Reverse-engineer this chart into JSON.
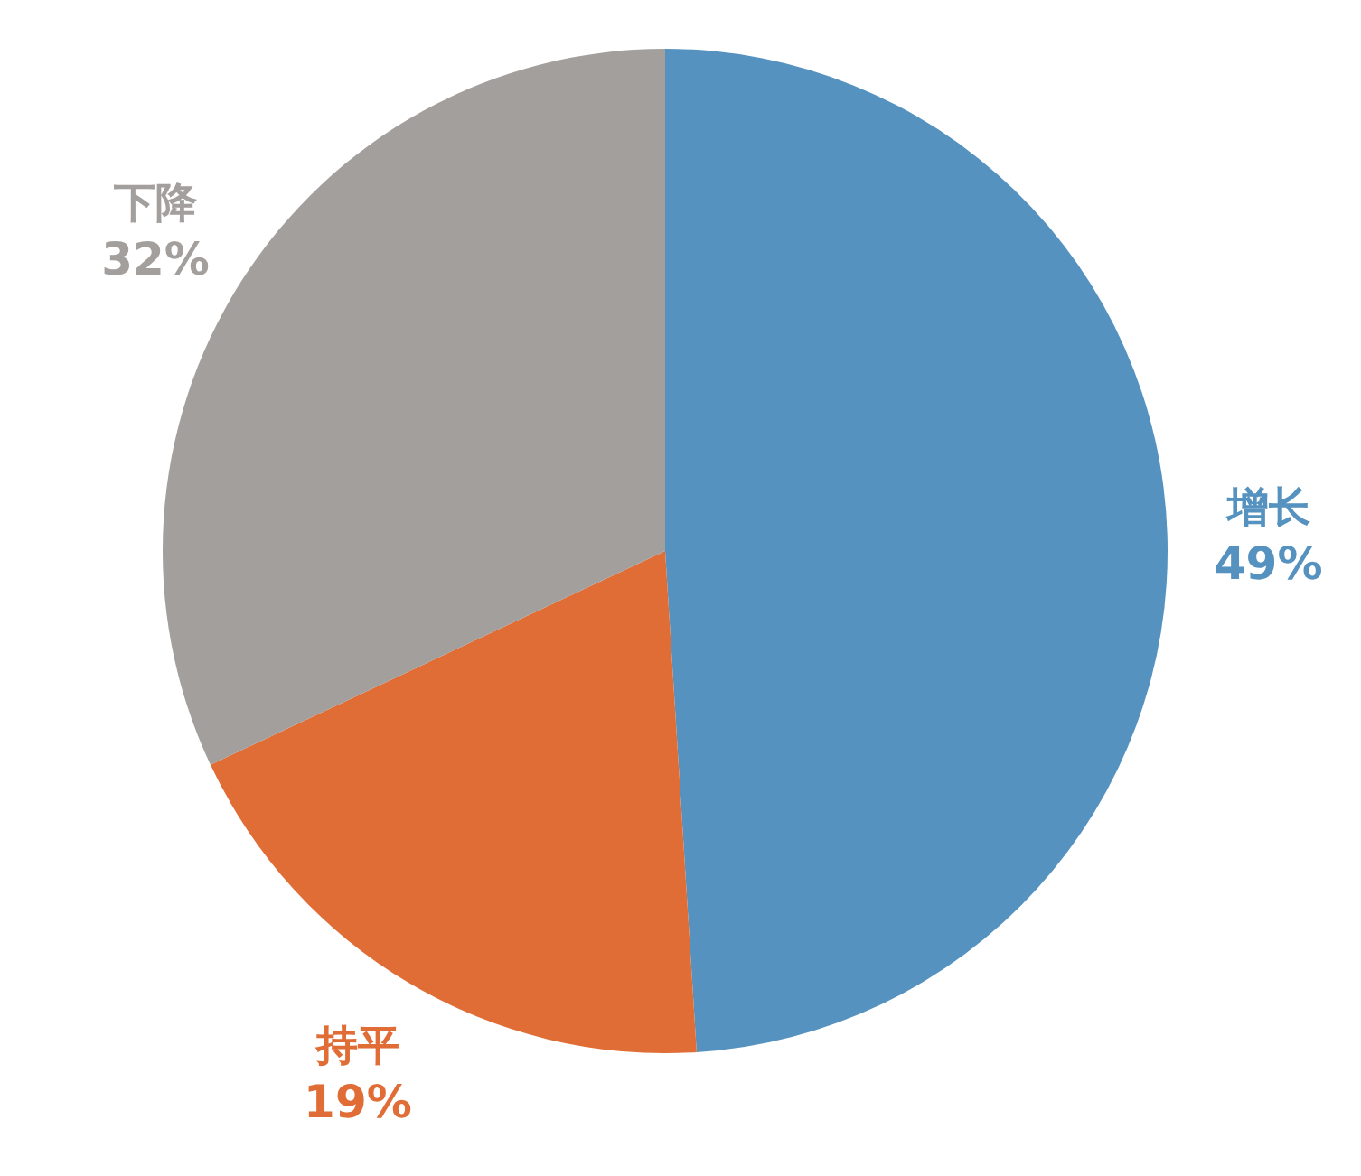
{
  "chart_data": {
    "type": "pie",
    "categories": [
      "增长",
      "持平",
      "下降"
    ],
    "values": [
      49,
      19,
      32
    ],
    "colors": [
      "#5592bf",
      "#e06c36",
      "#a39f9d"
    ],
    "value_labels": [
      "49%",
      "19%",
      "32%"
    ],
    "legend": false
  }
}
